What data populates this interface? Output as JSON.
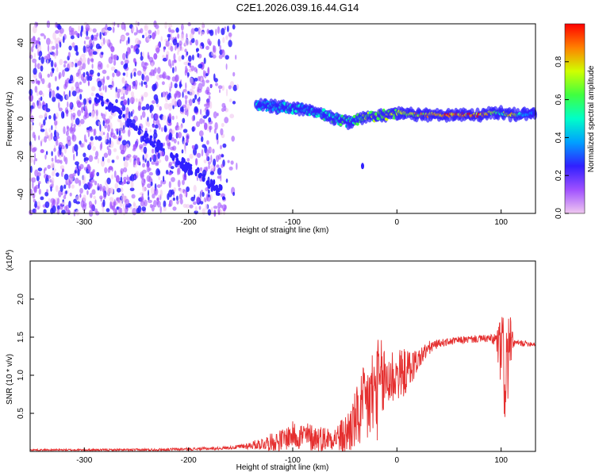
{
  "title": "C2E1.2026.039.16.44.G14",
  "chart_data": [
    {
      "type": "heatmap",
      "name": "spectrogram",
      "xlabel": "Height of straight line (km)",
      "ylabel": "Frequency (Hz)",
      "xlim": [
        -352,
        133
      ],
      "ylim": [
        -50,
        50
      ],
      "xticks": [
        -300,
        -200,
        -100,
        0,
        100
      ],
      "xtick_labels": [
        "-300",
        "-200",
        "-100",
        "0",
        "100"
      ],
      "yticks": [
        -40,
        -20,
        0,
        20,
        40
      ],
      "ytick_labels": [
        "-40",
        "-20",
        "0",
        "20",
        "40"
      ],
      "ridge": {
        "x": [
          -130,
          -110,
          -90,
          -75,
          -60,
          -45,
          -30,
          -10,
          0,
          20,
          40,
          60,
          80,
          90,
          100,
          110,
          120,
          133
        ],
        "y": [
          7,
          6,
          5,
          3,
          0,
          -2,
          1,
          2,
          3,
          2,
          2,
          2,
          2,
          3,
          3,
          2,
          2,
          3
        ],
        "amplitude": [
          0.45,
          0.5,
          0.5,
          0.5,
          0.55,
          0.6,
          0.65,
          0.7,
          0.7,
          0.8,
          0.9,
          0.95,
          0.9,
          0.75,
          0.6,
          0.9,
          0.5,
          0.3
        ]
      },
      "diagonal_track": {
        "x": [
          -290,
          -265,
          -240,
          -215,
          -190,
          -165
        ],
        "y": [
          12,
          2,
          -10,
          -20,
          -30,
          -40
        ]
      },
      "colorbar": {
        "label": "Normalized spectral amplitude",
        "range": [
          0,
          1
        ],
        "ticks": [
          "0.0",
          "0.2",
          "0.4",
          "0.6",
          "0.8"
        ],
        "colormap": [
          "#f0c8f0",
          "#a050ff",
          "#3020ff",
          "#00a0ff",
          "#00ffc8",
          "#40ff40",
          "#d0ff00",
          "#ff8000",
          "#ff0000"
        ]
      }
    },
    {
      "type": "line",
      "name": "snr",
      "xlabel": "Height of straight line (km)",
      "ylabel": "SNR (10 * v/v)",
      "y_multiplier": "(x10",
      "y_multiplier_exp": "4",
      "y_multiplier_close": ")",
      "xlim": [
        -352,
        133
      ],
      "ylim": [
        0,
        2.5
      ],
      "xticks": [
        -300,
        -200,
        -100,
        0,
        100
      ],
      "xtick_labels": [
        "-300",
        "-200",
        "-100",
        "0",
        "100"
      ],
      "yticks": [
        0.5,
        1.0,
        1.5,
        2.0
      ],
      "ytick_labels": [
        "0.5",
        "1.0",
        "1.5",
        "2.0"
      ],
      "color": "#e53030",
      "series": {
        "x": [
          -352,
          -300,
          -250,
          -200,
          -170,
          -150,
          -130,
          -110,
          -100,
          -90,
          -80,
          -70,
          -60,
          -50,
          -40,
          -30,
          -20,
          -10,
          0,
          10,
          20,
          30,
          40,
          60,
          80,
          90,
          95,
          100,
          105,
          108,
          112,
          120,
          133
        ],
        "y": [
          0.02,
          0.02,
          0.02,
          0.03,
          0.04,
          0.06,
          0.1,
          0.15,
          0.22,
          0.2,
          0.18,
          0.17,
          0.18,
          0.2,
          0.4,
          0.6,
          0.8,
          0.95,
          1.0,
          1.05,
          1.2,
          1.35,
          1.42,
          1.46,
          1.48,
          1.48,
          1.45,
          1.3,
          1.0,
          1.45,
          1.42,
          1.42,
          1.41
        ]
      },
      "noise_amplitude": {
        "x": [
          -352,
          -160,
          -140,
          -110,
          -90,
          -60,
          -40,
          -30,
          -20,
          -10,
          0,
          10,
          20,
          40,
          90,
          95,
          100,
          105,
          108,
          112,
          133
        ],
        "amp": [
          0.01,
          0.02,
          0.05,
          0.15,
          0.2,
          0.15,
          0.4,
          0.6,
          0.7,
          0.5,
          0.35,
          0.3,
          0.15,
          0.05,
          0.05,
          0.15,
          0.5,
          0.9,
          0.4,
          0.05,
          0.03
        ]
      }
    }
  ]
}
